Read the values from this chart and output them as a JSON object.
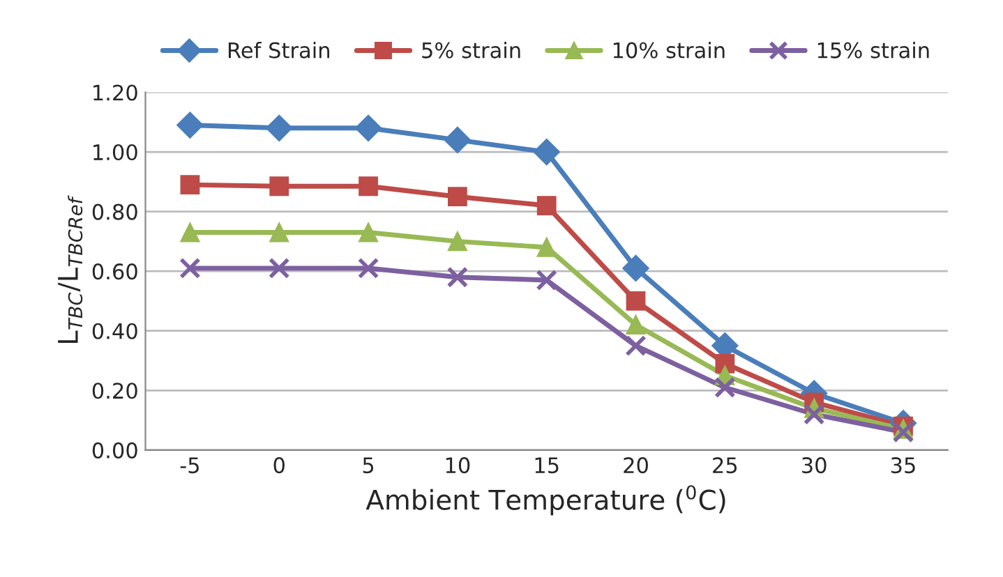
{
  "chart_data": {
    "type": "line",
    "xlabel": "Ambient Temperature ($^{0}$C)",
    "ylabel": "L$_{TBC}$/L$_{TBCRef}$",
    "categories": [
      "-5",
      "0",
      "5",
      "10",
      "15",
      "20",
      "25",
      "30",
      "35"
    ],
    "series": [
      {
        "name": "Ref Strain",
        "color": "#4a7ebb",
        "marker": "diamond",
        "values": [
          1.09,
          1.08,
          1.08,
          1.04,
          1.0,
          0.61,
          0.35,
          0.19,
          0.09
        ]
      },
      {
        "name": "5% strain",
        "color": "#be4b48",
        "marker": "square",
        "values": [
          0.89,
          0.885,
          0.885,
          0.85,
          0.82,
          0.5,
          0.29,
          0.16,
          0.08
        ]
      },
      {
        "name": "10% strain",
        "color": "#98b954",
        "marker": "triangle",
        "values": [
          0.73,
          0.73,
          0.73,
          0.7,
          0.68,
          0.42,
          0.25,
          0.14,
          0.07
        ]
      },
      {
        "name": "15% strain",
        "color": "#7d60a0",
        "marker": "cross",
        "values": [
          0.61,
          0.61,
          0.61,
          0.58,
          0.57,
          0.35,
          0.21,
          0.12,
          0.06
        ]
      }
    ],
    "ylim": [
      0,
      1.2
    ],
    "yticks": [
      {
        "value": 0,
        "label": "0.00"
      },
      {
        "value": 0.2,
        "label": "0.20"
      },
      {
        "value": 0.4,
        "label": "0.40"
      },
      {
        "value": 0.6,
        "label": "0.60"
      },
      {
        "value": 0.8,
        "label": "0.80"
      },
      {
        "value": 1.0,
        "label": "1.00"
      },
      {
        "value": 1.2,
        "label": "1.20"
      }
    ],
    "grid": "y",
    "legend": "top",
    "line_style": "solid"
  }
}
